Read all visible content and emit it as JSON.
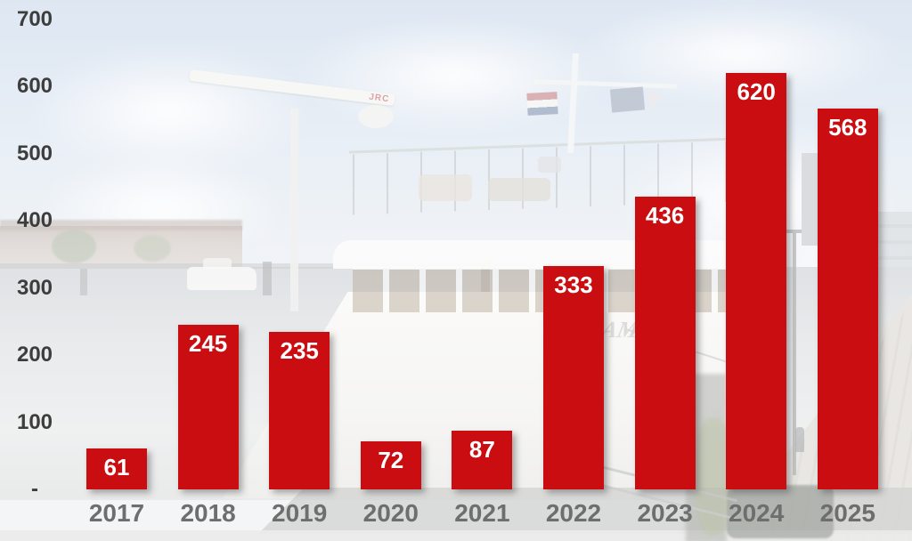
{
  "background": {
    "description": "faded photo of a white river cruise ship moored at a canal quay with houses, water and cobblestone dock",
    "radar_brand": "JRC",
    "ship_name_visible": "AM"
  },
  "colors": {
    "bar_fill": "#c90d10",
    "value_label": "#ffffff",
    "axis_tick": "#3d3d3d",
    "year_label": "#6e6e6e"
  },
  "chart_data": {
    "type": "bar",
    "title": "",
    "xlabel": "",
    "ylabel": "",
    "categories": [
      "2017",
      "2018",
      "2019",
      "2020",
      "2021",
      "2022",
      "2023",
      "2024",
      "2025"
    ],
    "values": [
      61,
      245,
      235,
      72,
      87,
      333,
      436,
      620,
      568
    ],
    "ylim": [
      0,
      700
    ],
    "y_ticks": [
      {
        "value": 0,
        "label": "-"
      },
      {
        "value": 100,
        "label": "100"
      },
      {
        "value": 200,
        "label": "200"
      },
      {
        "value": 300,
        "label": "300"
      },
      {
        "value": 400,
        "label": "400"
      },
      {
        "value": 500,
        "label": "500"
      },
      {
        "value": 600,
        "label": "600"
      },
      {
        "value": 700,
        "label": "700"
      }
    ],
    "grid": false,
    "legend": null,
    "data_labels": "inside-top, white bold",
    "background_style": "photo watermark"
  }
}
